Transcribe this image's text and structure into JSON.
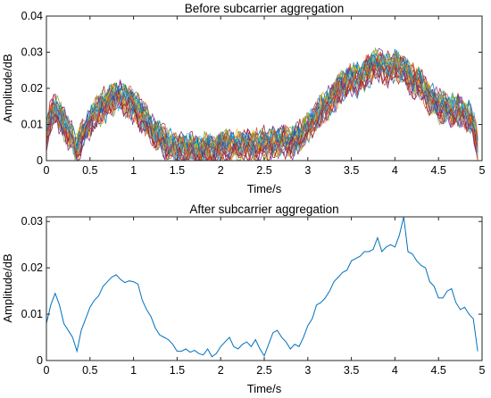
{
  "chart_data": [
    {
      "type": "line",
      "title": "Before subcarrier aggregation",
      "xlabel": "Time/s",
      "ylabel": "Amplitude/dB",
      "xlim": [
        0,
        5
      ],
      "ylim": [
        0,
        0.04
      ],
      "xticks": [
        0,
        0.5,
        1,
        1.5,
        2,
        2.5,
        3,
        3.5,
        4,
        4.5,
        5
      ],
      "yticks": [
        0,
        0.01,
        0.02,
        0.03,
        0.04
      ],
      "xtick_labels": [
        "0",
        "0.5",
        "1",
        "1.5",
        "2",
        "2.5",
        "3",
        "3.5",
        "4",
        "4.5",
        "5"
      ],
      "ytick_labels": [
        "0",
        "0.01",
        "0.02",
        "0.03",
        "0.04"
      ],
      "grid": false,
      "legend": "none",
      "series_count": 30,
      "series_colors": [
        "#0072bd",
        "#d95319",
        "#edb120",
        "#7e2f8e",
        "#77ac30",
        "#4dbeee",
        "#a2142f"
      ],
      "x": [
        0,
        0.05,
        0.1,
        0.2,
        0.3,
        0.35,
        0.4,
        0.5,
        0.6,
        0.7,
        0.8,
        0.9,
        1.0,
        1.1,
        1.2,
        1.3,
        1.5,
        1.7,
        1.9,
        2.0,
        2.2,
        2.4,
        2.6,
        2.8,
        2.9,
        3.0,
        3.1,
        3.2,
        3.3,
        3.4,
        3.5,
        3.6,
        3.7,
        3.8,
        3.9,
        4.0,
        4.1,
        4.2,
        4.3,
        4.4,
        4.5,
        4.6,
        4.7,
        4.8,
        4.9,
        4.95
      ],
      "envelope_mean": [
        0.007,
        0.013,
        0.014,
        0.01,
        0.006,
        0.003,
        0.006,
        0.011,
        0.014,
        0.016,
        0.018,
        0.017,
        0.015,
        0.012,
        0.009,
        0.006,
        0.003,
        0.003,
        0.003,
        0.004,
        0.004,
        0.004,
        0.005,
        0.005,
        0.006,
        0.009,
        0.012,
        0.015,
        0.018,
        0.021,
        0.022,
        0.023,
        0.025,
        0.027,
        0.025,
        0.026,
        0.025,
        0.022,
        0.021,
        0.017,
        0.015,
        0.014,
        0.014,
        0.013,
        0.01,
        0.003
      ]
    },
    {
      "type": "line",
      "title": "After subcarrier aggregation",
      "xlabel": "Time/s",
      "ylabel": "Amplitude/dB",
      "xlim": [
        0,
        5
      ],
      "ylim": [
        0,
        0.031
      ],
      "xticks": [
        0,
        0.5,
        1,
        1.5,
        2,
        2.5,
        3,
        3.5,
        4,
        4.5,
        5
      ],
      "yticks": [
        0,
        0.01,
        0.02,
        0.03
      ],
      "xtick_labels": [
        "0",
        "0.5",
        "1",
        "1.5",
        "2",
        "2.5",
        "3",
        "3.5",
        "4",
        "4.5",
        "5"
      ],
      "ytick_labels": [
        "0",
        "0.01",
        "0.02",
        "0.03"
      ],
      "grid": false,
      "legend": "none",
      "color": "#0072bd",
      "x": [
        0,
        0.05,
        0.1,
        0.15,
        0.2,
        0.25,
        0.3,
        0.35,
        0.4,
        0.45,
        0.5,
        0.55,
        0.6,
        0.65,
        0.7,
        0.75,
        0.8,
        0.85,
        0.9,
        0.95,
        1.0,
        1.05,
        1.1,
        1.15,
        1.2,
        1.25,
        1.3,
        1.35,
        1.4,
        1.45,
        1.5,
        1.55,
        1.6,
        1.65,
        1.7,
        1.75,
        1.8,
        1.85,
        1.9,
        1.95,
        2.0,
        2.05,
        2.1,
        2.15,
        2.2,
        2.25,
        2.3,
        2.35,
        2.4,
        2.45,
        2.5,
        2.55,
        2.6,
        2.65,
        2.7,
        2.75,
        2.8,
        2.85,
        2.9,
        2.95,
        3.0,
        3.05,
        3.1,
        3.15,
        3.2,
        3.25,
        3.3,
        3.35,
        3.4,
        3.45,
        3.5,
        3.55,
        3.6,
        3.65,
        3.7,
        3.75,
        3.8,
        3.85,
        3.9,
        3.95,
        4.0,
        4.05,
        4.1,
        4.15,
        4.2,
        4.25,
        4.3,
        4.35,
        4.4,
        4.45,
        4.5,
        4.55,
        4.6,
        4.65,
        4.7,
        4.75,
        4.8,
        4.85,
        4.9,
        4.95
      ],
      "values": [
        0.008,
        0.012,
        0.0145,
        0.012,
        0.008,
        0.0065,
        0.005,
        0.002,
        0.0065,
        0.009,
        0.0115,
        0.013,
        0.014,
        0.016,
        0.017,
        0.018,
        0.0185,
        0.0175,
        0.0168,
        0.0172,
        0.017,
        0.0165,
        0.013,
        0.011,
        0.0095,
        0.007,
        0.0055,
        0.005,
        0.0045,
        0.0035,
        0.002,
        0.002,
        0.0025,
        0.0018,
        0.0022,
        0.0015,
        0.0012,
        0.0025,
        0.0008,
        0.0015,
        0.003,
        0.004,
        0.005,
        0.003,
        0.0025,
        0.0035,
        0.004,
        0.003,
        0.0045,
        0.0025,
        0.001,
        0.0035,
        0.006,
        0.0065,
        0.005,
        0.004,
        0.0025,
        0.0035,
        0.003,
        0.005,
        0.0075,
        0.009,
        0.012,
        0.0125,
        0.0135,
        0.015,
        0.017,
        0.018,
        0.019,
        0.0195,
        0.0215,
        0.022,
        0.0225,
        0.0235,
        0.0235,
        0.024,
        0.0265,
        0.0235,
        0.0245,
        0.025,
        0.0245,
        0.027,
        0.031,
        0.0235,
        0.023,
        0.0215,
        0.0205,
        0.02,
        0.017,
        0.016,
        0.0135,
        0.0135,
        0.015,
        0.0155,
        0.0125,
        0.011,
        0.0115,
        0.01,
        0.009,
        0.002
      ]
    }
  ]
}
